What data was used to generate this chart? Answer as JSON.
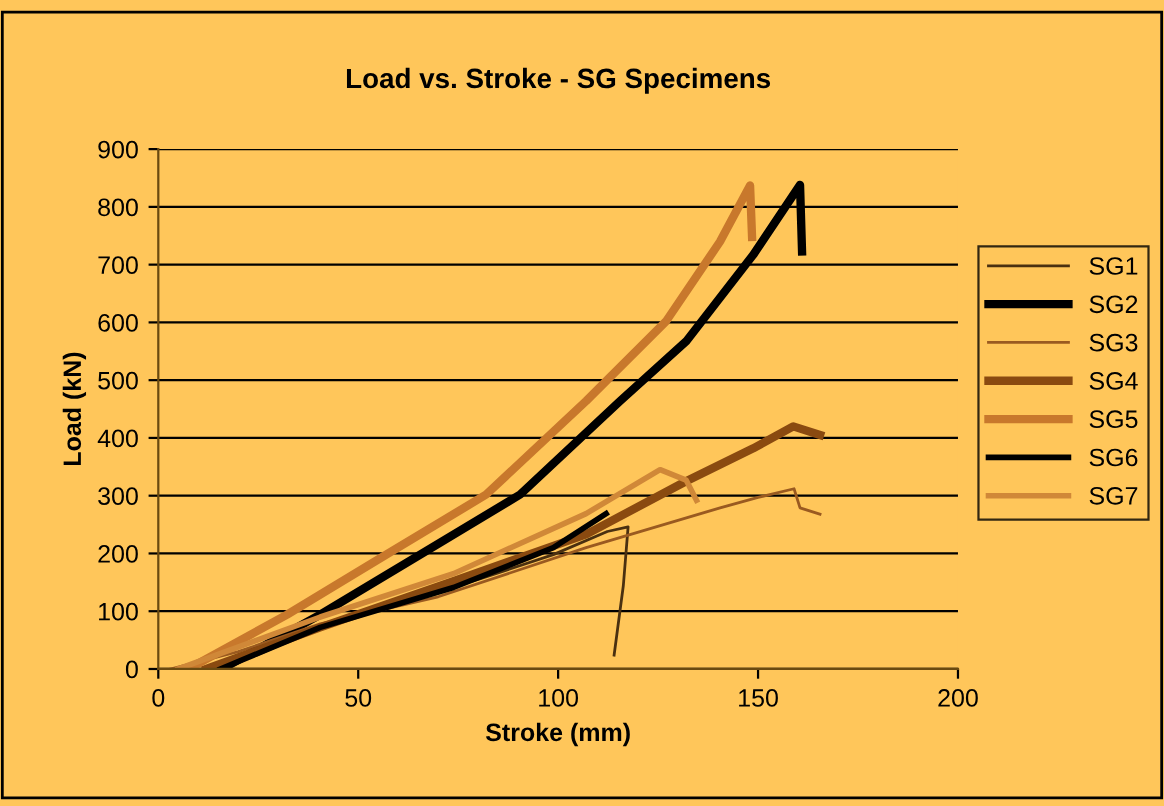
{
  "chart_data": {
    "type": "line",
    "title": "Load vs. Stroke - SG Specimens",
    "xlabel": "Stroke (mm)",
    "ylabel": "Load (kN)",
    "xlim": [
      0,
      200
    ],
    "xticks": [
      0,
      50,
      100,
      150,
      200
    ],
    "ylim": [
      0,
      900
    ],
    "yticks": [
      0,
      100,
      200,
      300,
      400,
      500,
      600,
      700,
      800,
      900
    ],
    "grid": "y",
    "legend": "right",
    "line_style": "solid",
    "marker": "none",
    "series": [
      {
        "name": "SG1",
        "color": "#4a3010",
        "x": [
          12,
          25,
          40.5,
          60,
          80,
          98.8,
          112.3,
          117.5,
          116.3,
          114
        ],
        "values": [
          0,
          25,
          72,
          115,
          155,
          198,
          238,
          246,
          144,
          24
        ]
      },
      {
        "name": "SG2",
        "color": "#000000",
        "x": [
          15,
          17.2,
          40.5,
          65.5,
          90.5,
          115.5,
          132,
          148.8,
          160.5,
          161
        ],
        "values": [
          0,
          5,
          94,
          198,
          302,
          464,
          567,
          717,
          838,
          723
        ]
      },
      {
        "name": "SG3",
        "color": "#9a5a20",
        "x": [
          3,
          20,
          40.5,
          70,
          107,
          140.5,
          150,
          159,
          160.5,
          165.5
        ],
        "values": [
          0,
          30,
          78,
          125,
          210,
          279,
          297,
          312,
          279,
          268
        ]
      },
      {
        "name": "SG4",
        "color": "#8a4a10",
        "x": [
          12,
          40.5,
          73.8,
          107,
          132,
          148.8,
          158.8,
          165.5
        ],
        "values": [
          0,
          72,
          152,
          233,
          325,
          382,
          420,
          405
        ]
      },
      {
        "name": "SG5",
        "color": "#c8782c",
        "x": [
          7.5,
          32.2,
          57,
          82,
          107,
          127,
          140.5,
          148,
          148.5
        ],
        "values": [
          0,
          94,
          198,
          302,
          464,
          602,
          740,
          837,
          748
        ]
      },
      {
        "name": "SG6",
        "color": "#000000",
        "x": [
          15.5,
          40.5,
          73.8,
          98.8,
          112
        ],
        "values": [
          0,
          72,
          141,
          210,
          269
        ]
      },
      {
        "name": "SG7",
        "color": "#d08838",
        "x": [
          5,
          40.5,
          73.8,
          107,
          125.5,
          132,
          134.6
        ],
        "values": [
          0,
          90,
          165,
          269,
          345,
          327,
          292
        ]
      }
    ]
  }
}
